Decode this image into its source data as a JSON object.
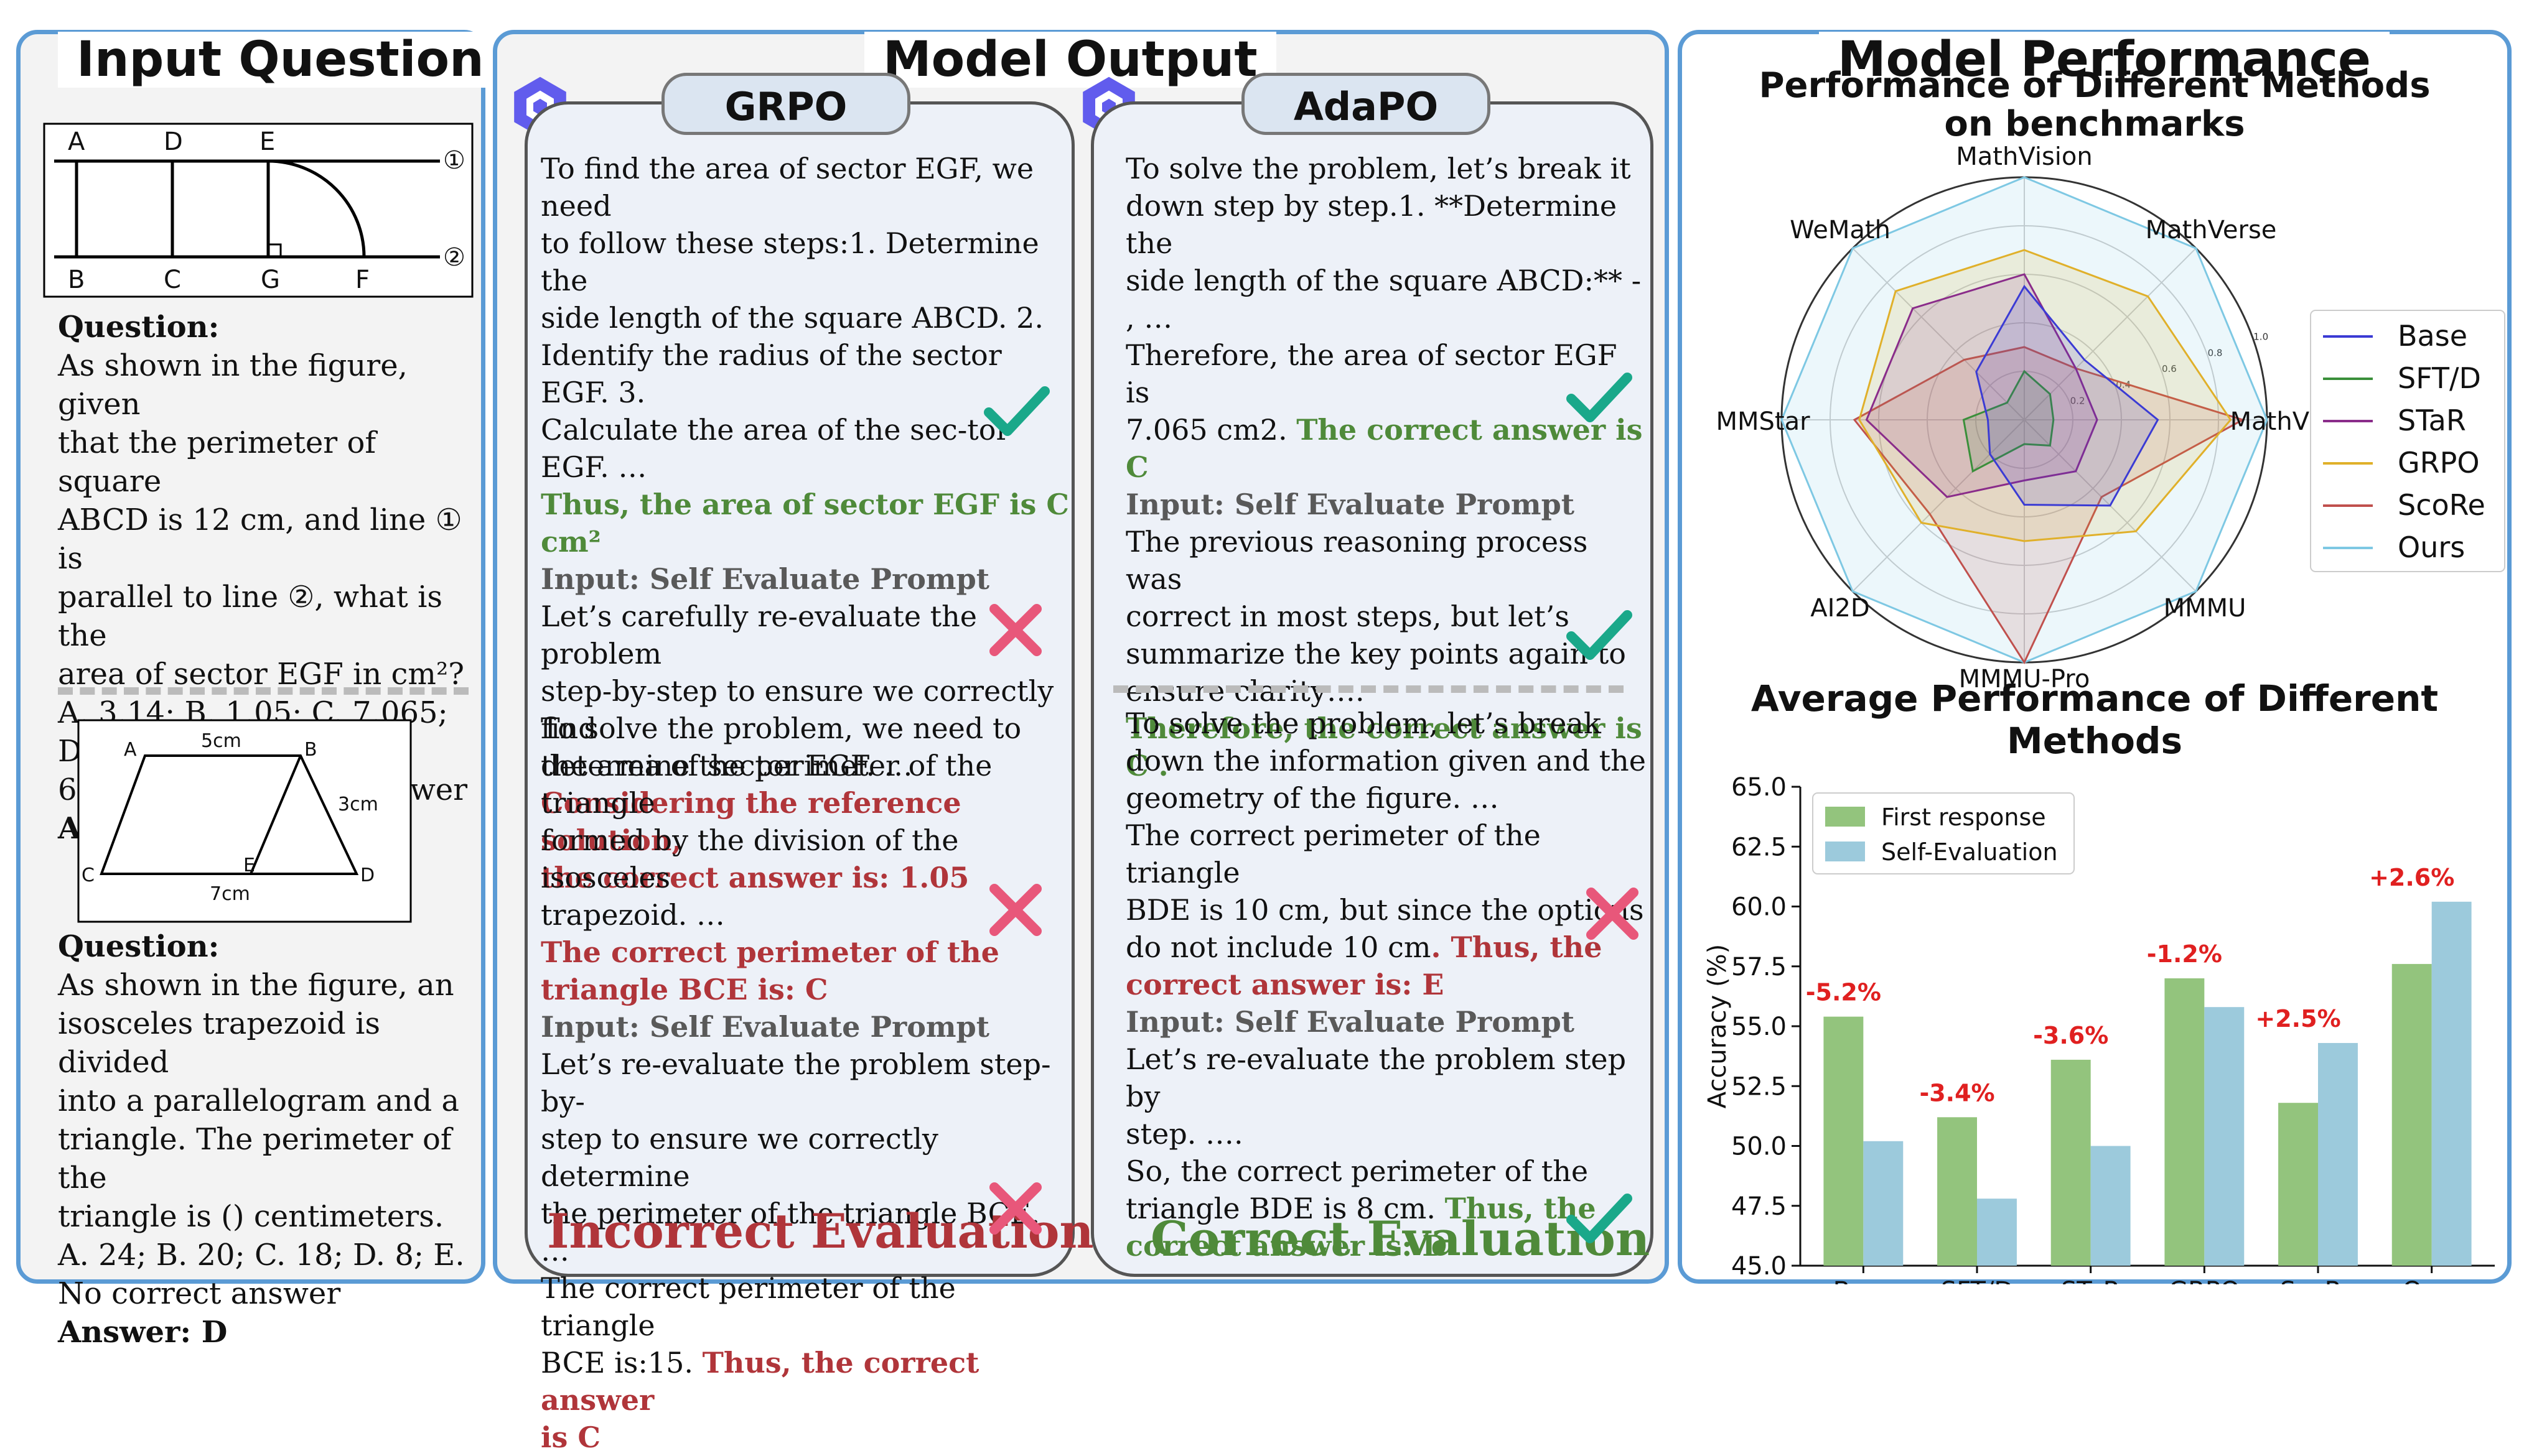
{
  "panels": {
    "input_title": "Input Question",
    "output_title": "Model Output",
    "performance_title": "Model Performance"
  },
  "q1": {
    "fig_labels": [
      "A",
      "D",
      "E",
      "B",
      "C",
      "G",
      "F",
      "①",
      "②"
    ],
    "label": "Question:",
    "lines": [
      "As shown in the figure, given",
      "that the perimeter of square",
      "ABCD is 12 cm, and line ① is",
      "parallel to line ②, what is the",
      "area of sector EGF in cm²?",
      "A. 3.14; B. 1.05; C. 7.065; D.",
      "6.28; E. No correct answer"
    ],
    "answer": "Answer: C"
  },
  "q2": {
    "fig_labels": [
      "A",
      "5cm",
      "B",
      "3cm",
      "C",
      "E",
      "D",
      "7cm"
    ],
    "label": "Question:",
    "lines": [
      "As shown in the figure, an",
      "isosceles trapezoid is divided",
      "into a parallelogram and a",
      "triangle. The perimeter of the",
      "triangle is () centimeters.",
      "A. 24; B. 20; C. 18; D. 8; E.",
      "No correct answer"
    ],
    "answer": "Answer: D"
  },
  "grpo": {
    "label": "GRPO",
    "t1_lines": [
      "To find the area of sector EGF, we need",
      "to follow these steps:1. Determine the",
      "side length of the square ABCD. 2.",
      "Identify the radius of the sector EGF. 3.",
      "Calculate the area of the sec-tor",
      "EGF. …"
    ],
    "t1_green": "Thus, the area of sector EGF is C cm²",
    "t1_prompt": "Input: Self Evaluate Prompt",
    "t1_lines2": [
      "Let’s carefully re-evaluate the problem",
      "step-by-step to ensure we correctly find",
      "the area of sector EGF. …"
    ],
    "t1_red": [
      "Considering the reference solution,",
      "the correct answer is: 1.05"
    ],
    "t2_lines": [
      "To solve the problem, we need to",
      "determine the perimeter of the triangle",
      "formed by the division of the isosceles",
      "trapezoid. …"
    ],
    "t2_red": [
      "The correct perimeter of the",
      "triangle BCE is: C"
    ],
    "t2_prompt": "Input: Self Evaluate Prompt",
    "t2_lines2": [
      "Let’s re-evaluate the problem step-by-",
      "step to ensure we correctly determine",
      "the perimeter of the triangle BCE. …",
      "The correct perimeter of the triangle"
    ],
    "t2_last_plain": "BCE is:15. ",
    "t2_last_red": "Thus, the correct answer",
    "t2_last2": "is  C",
    "verdict": "Incorrect Evaluation"
  },
  "adapo": {
    "label": "AdaPO",
    "t1_lines": [
      "To solve the problem, let’s break it",
      "down step by step.1. **Determine the",
      "side length of the square ABCD:** -",
      ", …",
      "Therefore, the area of sector EGF is"
    ],
    "t1_mixed_plain": "7.065 cm2. ",
    "t1_mixed_green": "The correct answer is C",
    "t1_prompt": "Input: Self Evaluate Prompt",
    "t1_lines2": [
      "The previous reasoning process was",
      "correct in most steps, but let’s",
      "summarize the key points again to",
      "ensure clarity…."
    ],
    "t1_green": "Therefore, the correct answer is C .",
    "t2_lines": [
      "To solve the problem, let’s break",
      "down the information given and the",
      "geometry of the figure. …",
      "The correct perimeter of the triangle",
      "BDE is 10 cm, but since the options"
    ],
    "t2_mixed_plain": "do not include 10 cm",
    "t2_mixed_red": ". Thus, the",
    "t2_red": "correct answer is: E",
    "t2_prompt": "Input: Self Evaluate Prompt",
    "t2_lines2": [
      "Let’s re-evaluate the problem step by",
      "step. ….",
      "So, the correct perimeter of the"
    ],
    "t2_last_plain": "triangle BDE is 8 cm. ",
    "t2_last_green": "Thus, the",
    "t2_last2_green": "correct  answer is: D",
    "verdict": "Correct Evaluation"
  },
  "colors": {
    "accent_blue": "#5b9bd5",
    "green": "#4f8a3a",
    "red": "#b0353a",
    "check": "#1aa88a",
    "cross": "#e8577a"
  },
  "chart_data": [
    {
      "type": "radar",
      "title": "Performance of Different Methods\non benchmarks",
      "axes": [
        "MathVision",
        "MathVerse",
        "MathVista",
        "MMMU",
        "MMMU-Pro",
        "AI2D",
        "MMStar",
        "WeMath"
      ],
      "rticks": [
        0.2,
        0.4,
        0.6,
        0.8,
        1.0
      ],
      "legend_position": "right",
      "series": [
        {
          "name": "Base",
          "color": "#3b3bd4",
          "values": [
            0.55,
            0.35,
            0.55,
            0.5,
            0.35,
            0.2,
            0.15,
            0.28
          ]
        },
        {
          "name": "SFT/D",
          "color": "#3a8f3a",
          "values": [
            0.2,
            0.15,
            0.12,
            0.15,
            0.1,
            0.3,
            0.25,
            0.1
          ]
        },
        {
          "name": "STaR",
          "color": "#8a2c8a",
          "values": [
            0.6,
            0.3,
            0.3,
            0.3,
            0.25,
            0.45,
            0.65,
            0.65
          ]
        },
        {
          "name": "GRPO",
          "color": "#e0b02a",
          "values": [
            0.7,
            0.72,
            0.85,
            0.65,
            0.5,
            0.6,
            0.68,
            0.75
          ]
        },
        {
          "name": "ScoRe",
          "color": "#c0504d",
          "values": [
            0.3,
            0.3,
            0.9,
            0.45,
            1.0,
            0.55,
            0.7,
            0.35
          ]
        },
        {
          "name": "Ours",
          "color": "#7ec8e3",
          "values": [
            1.0,
            1.0,
            1.0,
            1.0,
            1.0,
            1.0,
            1.0,
            1.0
          ]
        }
      ]
    },
    {
      "type": "bar",
      "title": "Average Performance of Different Methods",
      "categories": [
        "Base",
        "SFT/D",
        "STaR",
        "GRPO",
        "ScoRe",
        "Ours"
      ],
      "series": [
        {
          "name": "First response",
          "color": "#93c47d",
          "values": [
            55.4,
            51.2,
            53.6,
            57.0,
            51.8,
            57.6
          ]
        },
        {
          "name": "Self-Evaluation",
          "color": "#9ccadc",
          "values": [
            50.2,
            47.8,
            50.0,
            55.8,
            54.3,
            60.2
          ]
        }
      ],
      "annotations": [
        "-5.2%",
        "-3.4%",
        "-3.6%",
        "-1.2%",
        "+2.5%",
        "+2.6%"
      ],
      "ylabel": "Accuracy (%)",
      "ylim": [
        45.0,
        65.0
      ],
      "yticks": [
        "45.0",
        "47.5",
        "50.0",
        "52.5",
        "55.0",
        "57.5",
        "60.0",
        "62.5",
        "65.0"
      ],
      "legend_position": "top-left"
    }
  ]
}
